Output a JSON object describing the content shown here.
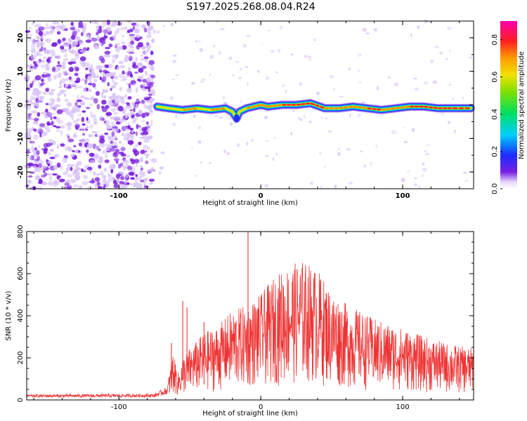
{
  "title": "S197.2025.268.08.04.R24",
  "colors": {
    "snr_line": "#ee3333",
    "ridge_core": "#ff2222",
    "noise_strong": "#7a1fe0",
    "noise_weak": "#d7c2f7"
  },
  "chart_data": [
    {
      "type": "heatmap",
      "name": "spectrogram",
      "title": "S197.2025.268.08.04.R24",
      "xlabel": "Height of straight line (km)",
      "ylabel": "Frequency (Hz)",
      "xlim": [
        -165,
        150
      ],
      "ylim": [
        -25,
        25
      ],
      "x_ticks": [
        -100,
        0,
        100
      ],
      "y_ticks": [
        -20,
        -10,
        0,
        10,
        20
      ],
      "colorbar": {
        "label": "Normalized spectral amplitude",
        "range": [
          0,
          0.9
        ],
        "ticks": [
          0.0,
          0.2,
          0.4,
          0.6,
          0.8
        ]
      },
      "signal_onset_km": -75,
      "ridge": {
        "x": [
          -73,
          -65,
          -55,
          -45,
          -35,
          -25,
          -20,
          -17,
          -15,
          -10,
          0,
          5,
          15,
          25,
          35,
          45,
          55,
          65,
          75,
          85,
          95,
          105,
          115,
          125,
          135,
          148
        ],
        "freq_hz": [
          -0.5,
          -1.0,
          -1.5,
          -1.0,
          -1.5,
          -1.0,
          -2.0,
          -4.0,
          -2.0,
          -1.0,
          0.0,
          -0.5,
          0.0,
          0.0,
          0.5,
          -1.0,
          -1.0,
          -0.5,
          -1.0,
          -1.5,
          -1.0,
          -0.5,
          -0.5,
          -1.0,
          -1.0,
          -1.0
        ],
        "amplitude": [
          0.5,
          0.55,
          0.6,
          0.55,
          0.6,
          0.5,
          0.45,
          0.4,
          0.5,
          0.6,
          0.7,
          0.65,
          0.8,
          0.75,
          0.8,
          0.65,
          0.7,
          0.7,
          0.75,
          0.7,
          0.7,
          0.75,
          0.8,
          0.85,
          0.85,
          0.85
        ]
      }
    },
    {
      "type": "line",
      "name": "snr",
      "xlabel": "Height of straight line (km)",
      "ylabel": "SNR (10 * v/v)",
      "xlim": [
        -165,
        150
      ],
      "ylim": [
        0,
        800
      ],
      "x_ticks": [
        -100,
        0,
        100
      ],
      "y_ticks": [
        0,
        200,
        400,
        600,
        800
      ],
      "envelope": {
        "x": [
          -165,
          -75,
          -66,
          -62,
          -58,
          -55,
          -50,
          -40,
          -30,
          -20,
          -10,
          0,
          10,
          20,
          30,
          40,
          50,
          60,
          80,
          100,
          120,
          140,
          150
        ],
        "y": [
          25,
          28,
          60,
          210,
          120,
          190,
          230,
          300,
          330,
          400,
          420,
          470,
          550,
          600,
          620,
          580,
          480,
          430,
          360,
          320,
          270,
          240,
          230
        ]
      },
      "spikes": [
        {
          "x": -63,
          "y": 270
        },
        {
          "x": -55,
          "y": 470
        },
        {
          "x": -52,
          "y": 440
        },
        {
          "x": -40,
          "y": 370
        },
        {
          "x": -9,
          "y": 800
        }
      ]
    }
  ]
}
